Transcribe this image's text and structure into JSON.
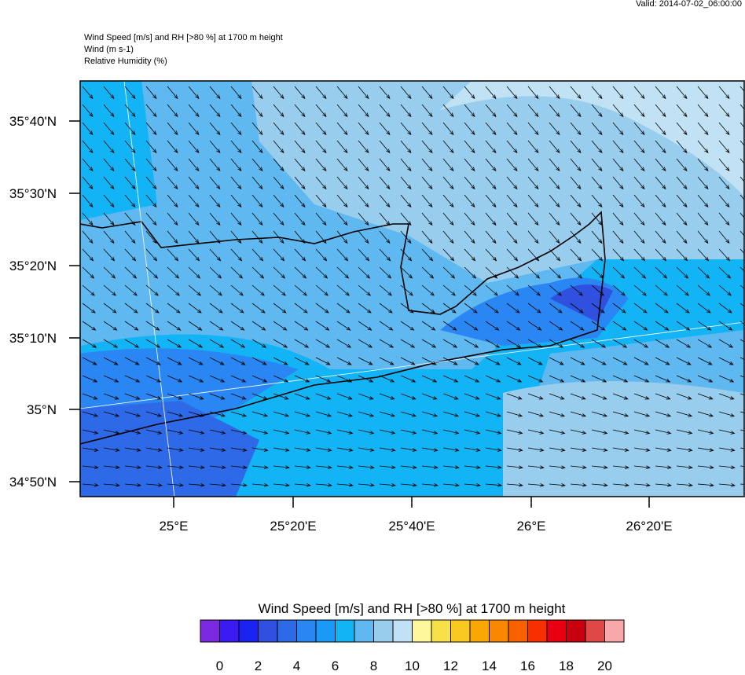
{
  "header": {
    "valid": "Valid: 2014-07-02_06:00:00",
    "lines": [
      "Wind Speed [m/s] and RH [>80 %] at 1700 m height",
      "Wind   (m s-1)",
      "Relative Humidity   (%)"
    ]
  },
  "map": {
    "lat_labels": [
      "35°40'N",
      "35°30'N",
      "35°20'N",
      "35°10'N",
      "35°N",
      "34°50'N"
    ],
    "lon_labels": [
      "25°E",
      "25°20'E",
      "25°40'E",
      "26°E",
      "26°20'E"
    ]
  },
  "colorbar": {
    "title": "Wind Speed [m/s] and RH [>80 %] at 1700 m height",
    "ticks": [
      0,
      2,
      4,
      6,
      8,
      10,
      12,
      14,
      16,
      18,
      20
    ],
    "colors": [
      "#7b2ae0",
      "#3a1af0",
      "#1a22f0",
      "#3050e0",
      "#2e6ae8",
      "#2a86f2",
      "#1a9af6",
      "#12b4f6",
      "#60b8f0",
      "#98cdee",
      "#c0e2f4",
      "#fff89a",
      "#f8e048",
      "#f8c820",
      "#f8a800",
      "#f88800",
      "#f86000",
      "#f83000",
      "#e80010",
      "#c80010",
      "#e04848",
      "#f8a8a8"
    ]
  }
}
